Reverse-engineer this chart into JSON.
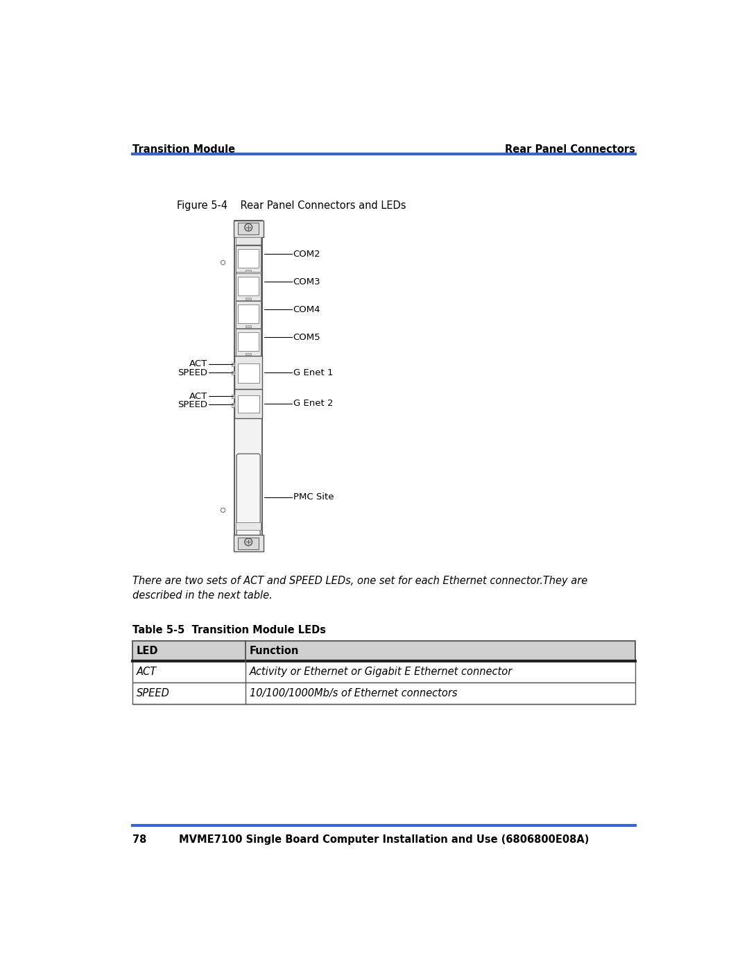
{
  "page_header_left": "Transition Module",
  "page_header_right": "Rear Panel Connectors",
  "figure_caption": "Figure 5-4    Rear Panel Connectors and LEDs",
  "italic_text": "There are two sets of ACT and SPEED LEDs, one set for each Ethernet connector.They are\ndescribed in the next table.",
  "table_title": "Table 5-5  Transition Module LEDs",
  "table_headers": [
    "LED",
    "Function"
  ],
  "table_rows": [
    [
      "ACT",
      "Activity or Ethernet or Gigabit E Ethernet connector"
    ],
    [
      "SPEED",
      "10/100/1000Mb/s of Ethernet connectors"
    ]
  ],
  "page_number": "78",
  "footer_text": "MVME7100 Single Board Computer Installation and Use (6806800E08A)",
  "header_line_color": "#3366dd",
  "footer_line_color": "#3366dd",
  "bg_color": "#ffffff",
  "text_color": "#000000"
}
